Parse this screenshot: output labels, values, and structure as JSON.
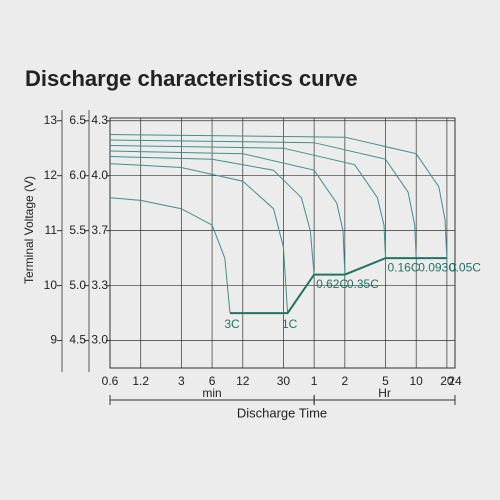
{
  "chart_data": {
    "type": "line",
    "title": "Discharge characteristics curve",
    "y_label": "Terminal Voltage (V)",
    "x_label": "Discharge Time",
    "x_units": [
      "min",
      "Hr"
    ],
    "xscale": "log",
    "xlim": [
      0.6,
      1440
    ],
    "xticks": [
      0.6,
      1.2,
      3,
      6,
      12,
      30,
      {
        "value": 60,
        "label": "1"
      },
      {
        "value": 120,
        "label": "2"
      },
      {
        "value": 300,
        "label": "5"
      },
      {
        "value": 600,
        "label": "10"
      },
      {
        "value": 1200,
        "label": "20"
      },
      {
        "value": 1440,
        "label": "24"
      }
    ],
    "ylim": [
      8.5,
      13.05
    ],
    "yticks": [
      9,
      10,
      11,
      12,
      13
    ],
    "y2lim": [
      4.25,
      6.525
    ],
    "y2ticks": [
      4.5,
      {
        "value": 5,
        "label": "5.0"
      },
      5.5,
      {
        "value": 6,
        "label": "6.0"
      },
      6.5
    ],
    "y3ticks": [
      {
        "value": 3,
        "label": "3.0"
      },
      3.3,
      3.7,
      {
        "value": 4,
        "label": "4.0"
      },
      4.3
    ],
    "grid": true,
    "line_color": "#3f8f8c",
    "cutoff_color": "#1f7466",
    "series": [
      {
        "name": "3C",
        "x": [
          0.6,
          1.2,
          3,
          6,
          8,
          9
        ],
        "values": [
          11.6,
          11.55,
          11.4,
          11.1,
          10.5,
          9.5
        ]
      },
      {
        "name": "1C",
        "x": [
          0.6,
          3,
          12,
          24,
          30,
          33
        ],
        "values": [
          12.22,
          12.15,
          11.9,
          11.4,
          10.7,
          9.5
        ]
      },
      {
        "name": "0.62C",
        "x": [
          0.6,
          6,
          24,
          45,
          55,
          60
        ],
        "values": [
          12.35,
          12.3,
          12.1,
          11.6,
          11,
          10.2
        ]
      },
      {
        "name": "0.35C",
        "x": [
          0.6,
          12,
          60,
          100,
          115,
          120
        ],
        "values": [
          12.45,
          12.4,
          12.1,
          11.5,
          11,
          10.2
        ]
      },
      {
        "name": "0.16C",
        "x": [
          0.6,
          30,
          150,
          250,
          290,
          300
        ],
        "values": [
          12.55,
          12.5,
          12.2,
          11.6,
          11.1,
          10.5
        ]
      },
      {
        "name": "0.093C",
        "x": [
          0.6,
          60,
          300,
          500,
          580,
          600
        ],
        "values": [
          12.65,
          12.6,
          12.3,
          11.7,
          11.1,
          10.5
        ]
      },
      {
        "name": "0.05C",
        "x": [
          0.6,
          120,
          600,
          1000,
          1150,
          1200
        ],
        "values": [
          12.75,
          12.7,
          12.4,
          11.8,
          11.2,
          10.5
        ]
      }
    ]
  }
}
